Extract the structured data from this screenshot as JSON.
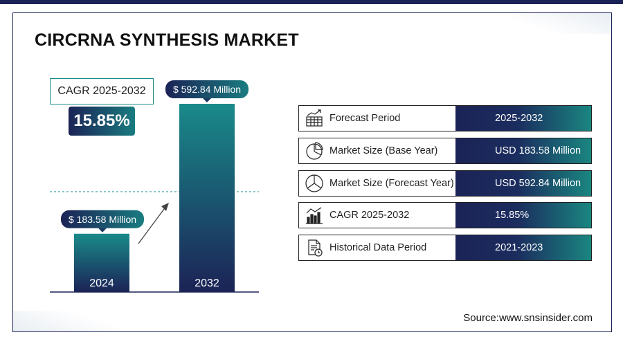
{
  "title": "CIRCRNA SYNTHESIS MARKET",
  "cagr_label": "CAGR 2025-2032",
  "cagr_value": "15.85%",
  "chart_data": {
    "type": "bar",
    "categories": [
      "2024",
      "2032"
    ],
    "values": [
      183.58,
      592.84
    ],
    "value_labels": [
      "$ 183.58 Million",
      "$ 592.84 Million"
    ],
    "ylim": [
      0,
      600
    ]
  },
  "rows": [
    {
      "icon": "forecast-chart-icon",
      "label": "Forecast Period",
      "value": "2025-2032"
    },
    {
      "icon": "pie-chart-icon",
      "label": "Market Size (Base Year)",
      "value": "USD 183.58 Million"
    },
    {
      "icon": "pie-chart-icon",
      "label": "Market Size (Forecast Year)",
      "value": "USD 592.84 Million"
    },
    {
      "icon": "bar-chart-trend-icon",
      "label": "CAGR 2025-2032",
      "value": "15.85%"
    },
    {
      "icon": "document-clock-icon",
      "label": "Historical Data Period",
      "value": "2021-2023"
    }
  ],
  "source": "Source:www.snsinsider.com",
  "colors": {
    "navy": "#1b2356",
    "teal": "#1a8a8a"
  }
}
